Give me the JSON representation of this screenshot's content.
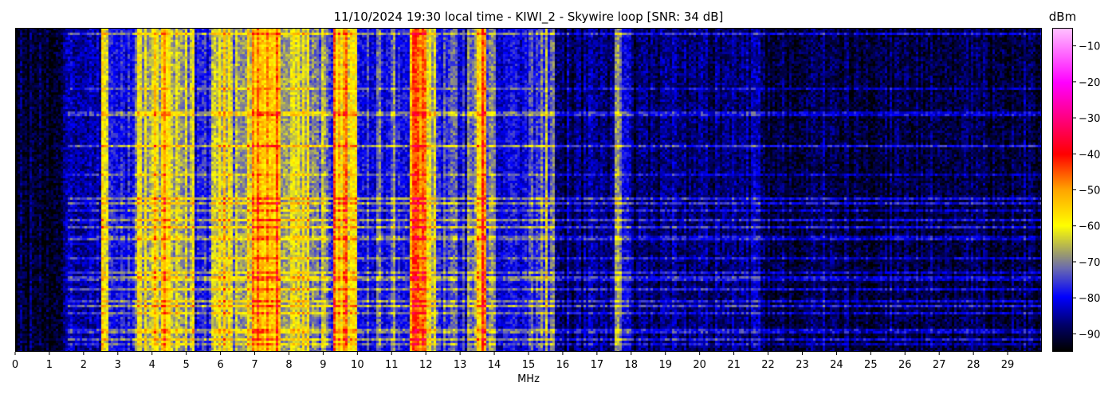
{
  "chart_data": {
    "type": "heatmap",
    "title": "11/10/2024 19:30 local time - KIWI_2 - Skywire loop [SNR: 34 dB]",
    "xlabel": "MHz",
    "ylabel": "",
    "xlim": [
      0,
      30
    ],
    "x_ticks": [
      "0",
      "1",
      "2",
      "3",
      "4",
      "5",
      "6",
      "7",
      "8",
      "9",
      "10",
      "11",
      "12",
      "13",
      "14",
      "15",
      "16",
      "17",
      "18",
      "19",
      "20",
      "21",
      "22",
      "23",
      "24",
      "25",
      "26",
      "27",
      "28",
      "29"
    ],
    "colorbar": {
      "label": "dBm",
      "range": [
        -95,
        -5
      ],
      "ticks": [
        "-10",
        "-20",
        "-30",
        "-40",
        "-50",
        "-60",
        "-70",
        "-80",
        "-90"
      ],
      "tick_values": [
        -10,
        -20,
        -30,
        -40,
        -50,
        -60,
        -70,
        -80,
        -90
      ],
      "colormap": [
        {
          "value": -95,
          "color": "#000000"
        },
        {
          "value": -88,
          "color": "#000066"
        },
        {
          "value": -80,
          "color": "#0000ff"
        },
        {
          "value": -72,
          "color": "#6a6ab0"
        },
        {
          "value": -68,
          "color": "#9a9a70"
        },
        {
          "value": -60,
          "color": "#ffff00"
        },
        {
          "value": -50,
          "color": "#ffa500"
        },
        {
          "value": -40,
          "color": "#ff0000"
        },
        {
          "value": -30,
          "color": "#ff0080"
        },
        {
          "value": -20,
          "color": "#ff00ff"
        },
        {
          "value": -5,
          "color": "#ffc0ff"
        }
      ]
    },
    "frequency_bin_mhz": 0.25,
    "mean_level_dbm_by_frequency": [
      -92,
      -92,
      -92,
      -92,
      -92,
      -89,
      -85,
      -85,
      -85,
      -85,
      -62,
      -80,
      -80,
      -80,
      -65,
      -65,
      -65,
      -56,
      -68,
      -68,
      -68,
      -78,
      -78,
      -60,
      -60,
      -66,
      -66,
      -60,
      -52,
      -52,
      -52,
      -72,
      -68,
      -68,
      -68,
      -72,
      -72,
      -56,
      -56,
      -56,
      -78,
      -78,
      -78,
      -78,
      -78,
      -78,
      -50,
      -50,
      -62,
      -79,
      -79,
      -79,
      -79,
      -79,
      -52,
      -74,
      -82,
      -82,
      -82,
      -82,
      -74,
      -74,
      -74,
      -88,
      -88,
      -88,
      -88,
      -88,
      -88,
      -88,
      -66,
      -80,
      -88,
      -88,
      -88,
      -88,
      -88,
      -88,
      -88,
      -88,
      -88,
      -88,
      -88,
      -88,
      -88,
      -88,
      -84,
      -90,
      -90,
      -90,
      -90,
      -90,
      -90,
      -90,
      -90,
      -90,
      -90,
      -90,
      -90,
      -90,
      -90,
      -90,
      -90,
      -90,
      -90,
      -90,
      -90,
      -90,
      -90,
      -90,
      -90,
      -90,
      -90,
      -90,
      -90,
      -90,
      -90,
      -90,
      -90,
      -90
    ],
    "grid": false
  }
}
